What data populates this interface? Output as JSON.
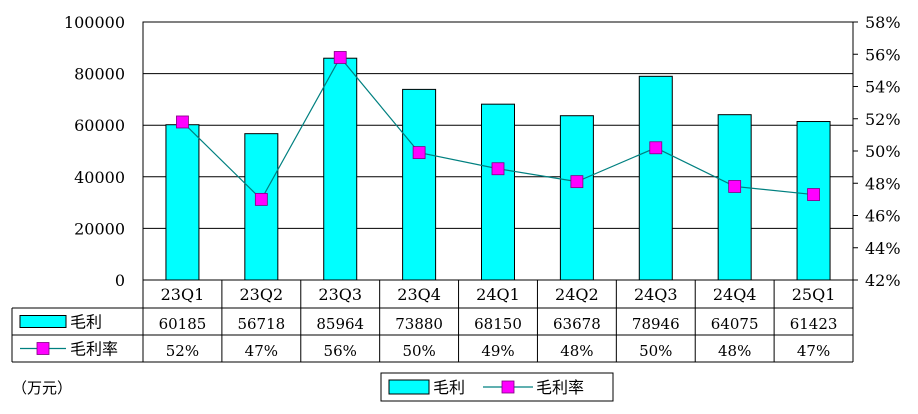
{
  "chart_data": {
    "type": "bar",
    "categories": [
      "23Q1",
      "23Q2",
      "23Q3",
      "23Q4",
      "24Q1",
      "24Q2",
      "24Q3",
      "24Q4",
      "25Q1"
    ],
    "series": [
      {
        "name": "毛利",
        "type": "bar",
        "axis": "left",
        "color": "#00ffff",
        "values": [
          60185,
          56718,
          85964,
          73880,
          68150,
          63678,
          78946,
          64075,
          61423
        ],
        "labels": [
          "60185",
          "56718",
          "85964",
          "73880",
          "68150",
          "63678",
          "78946",
          "64075",
          "61423"
        ]
      },
      {
        "name": "毛利率",
        "type": "line",
        "axis": "right",
        "color": "#ff00ff",
        "line_color": "#008080",
        "marker": "square",
        "values": [
          51.8,
          47.0,
          55.8,
          49.9,
          48.9,
          48.1,
          50.2,
          47.8,
          47.3
        ],
        "labels": [
          "52%",
          "47%",
          "56%",
          "50%",
          "49%",
          "48%",
          "50%",
          "48%",
          "47%"
        ]
      }
    ],
    "ylim_left": [
      0,
      100000
    ],
    "ylim_right": [
      42,
      58
    ],
    "yticks_left": [
      "0",
      "20000",
      "40000",
      "60000",
      "80000",
      "100000"
    ],
    "yticks_right": [
      "42%",
      "44%",
      "46%",
      "48%",
      "50%",
      "52%",
      "54%",
      "56%",
      "58%"
    ],
    "grid": true,
    "legend": "bottom",
    "unit": "（万元）"
  }
}
